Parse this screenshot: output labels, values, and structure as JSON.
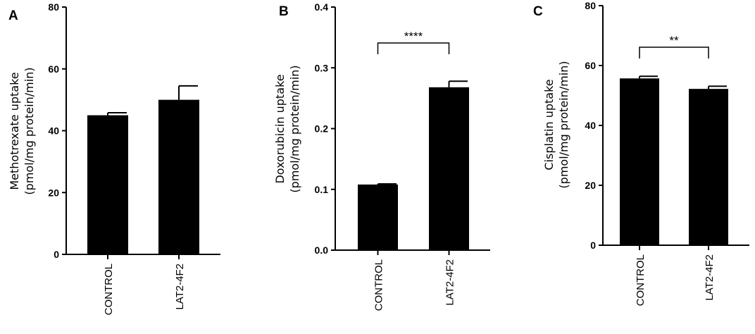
{
  "chart_data": [
    {
      "type": "bar",
      "panel_label": "A",
      "categories": [
        "CONTROL",
        "LAT2-4F2"
      ],
      "values": [
        45,
        50
      ],
      "errors": [
        0.8,
        4.5
      ],
      "ylabel_lines": [
        "Methotrexate uptake",
        "(pmol/mg protein/min)"
      ],
      "ylim": [
        0,
        80
      ],
      "yticks": [
        "0",
        "20",
        "40",
        "60",
        "80"
      ],
      "significance": "",
      "bar_color": "#000000",
      "grid": false
    },
    {
      "type": "bar",
      "panel_label": "B",
      "categories": [
        "CONTROL",
        "LAT2-4F2"
      ],
      "values": [
        0.108,
        0.268
      ],
      "errors": [
        0.001,
        0.01
      ],
      "ylabel_lines": [
        "Doxorubicin uptake",
        "(pmol/mg protein/min)"
      ],
      "ylim": [
        0,
        0.4
      ],
      "yticks": [
        "0.0",
        "0.1",
        "0.2",
        "0.3",
        "0.4"
      ],
      "significance": "****",
      "bar_color": "#000000",
      "grid": false
    },
    {
      "type": "bar",
      "panel_label": "C",
      "categories": [
        "CONTROL",
        "LAT2-4F2"
      ],
      "values": [
        55.7,
        52.2
      ],
      "errors": [
        0.7,
        0.9
      ],
      "ylabel_lines": [
        "Cisplatin uptake",
        "(pmol/mg protein/min)"
      ],
      "ylim": [
        0,
        80
      ],
      "yticks": [
        "0",
        "20",
        "40",
        "60",
        "80"
      ],
      "significance": "**",
      "bar_color": "#000000",
      "grid": false
    }
  ]
}
